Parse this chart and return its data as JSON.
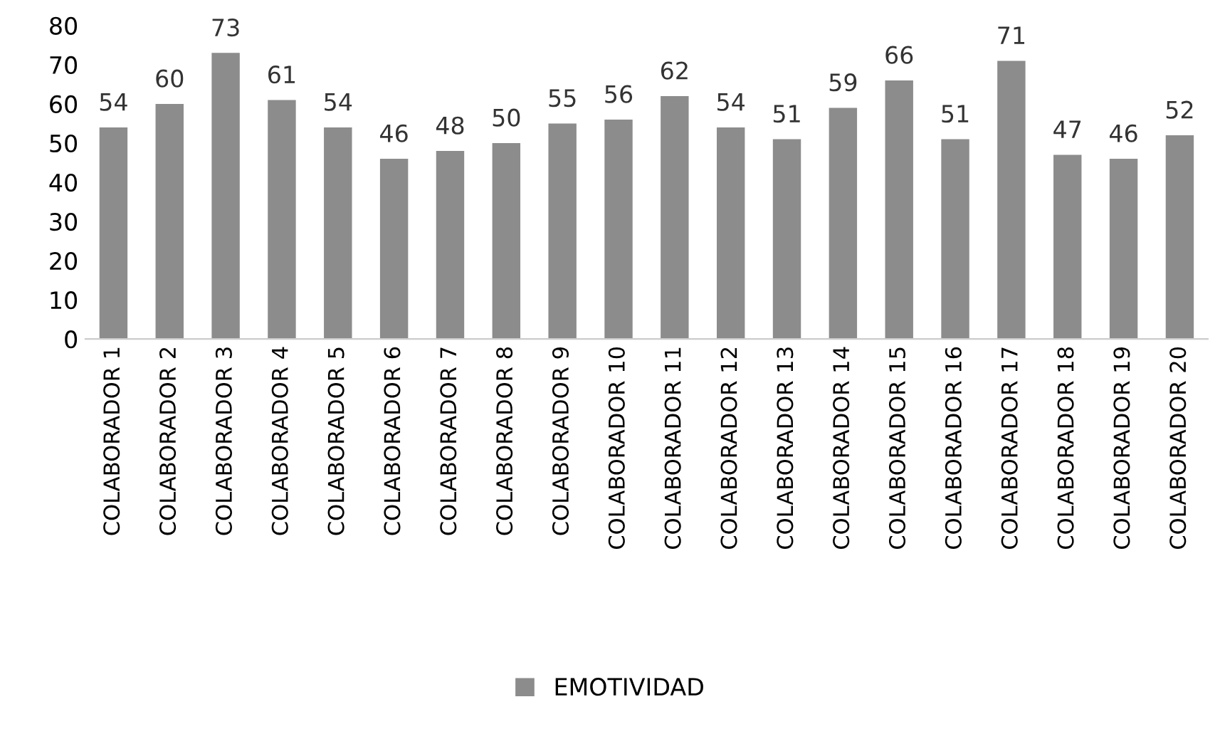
{
  "chart_data": {
    "type": "bar",
    "categories": [
      "COLABORADOR 1",
      "COLABORADOR 2",
      "COLABORADOR 3",
      "COLABORADOR 4",
      "COLABORADOR 5",
      "COLABORADOR 6",
      "COLABORADOR 7",
      "COLABORADOR 8",
      "COLABORADOR 9",
      "COLABORADOR 10",
      "COLABORADOR 11",
      "COLABORADOR 12",
      "COLABORADOR 13",
      "COLABORADOR 14",
      "COLABORADOR 15",
      "COLABORADOR 16",
      "COLABORADOR 17",
      "COLABORADOR 18",
      "COLABORADOR 19",
      "COLABORADOR 20"
    ],
    "series": [
      {
        "name": "EMOTIVIDAD",
        "color": "#8c8c8c",
        "values": [
          54,
          60,
          73,
          61,
          54,
          46,
          48,
          50,
          55,
          56,
          62,
          54,
          51,
          59,
          66,
          51,
          71,
          47,
          46,
          52
        ]
      }
    ],
    "ylim": [
      0,
      80
    ],
    "yticks": [
      0,
      10,
      20,
      30,
      40,
      50,
      60,
      70,
      80
    ],
    "data_labels": true,
    "grid": false,
    "legend": "bottom"
  }
}
